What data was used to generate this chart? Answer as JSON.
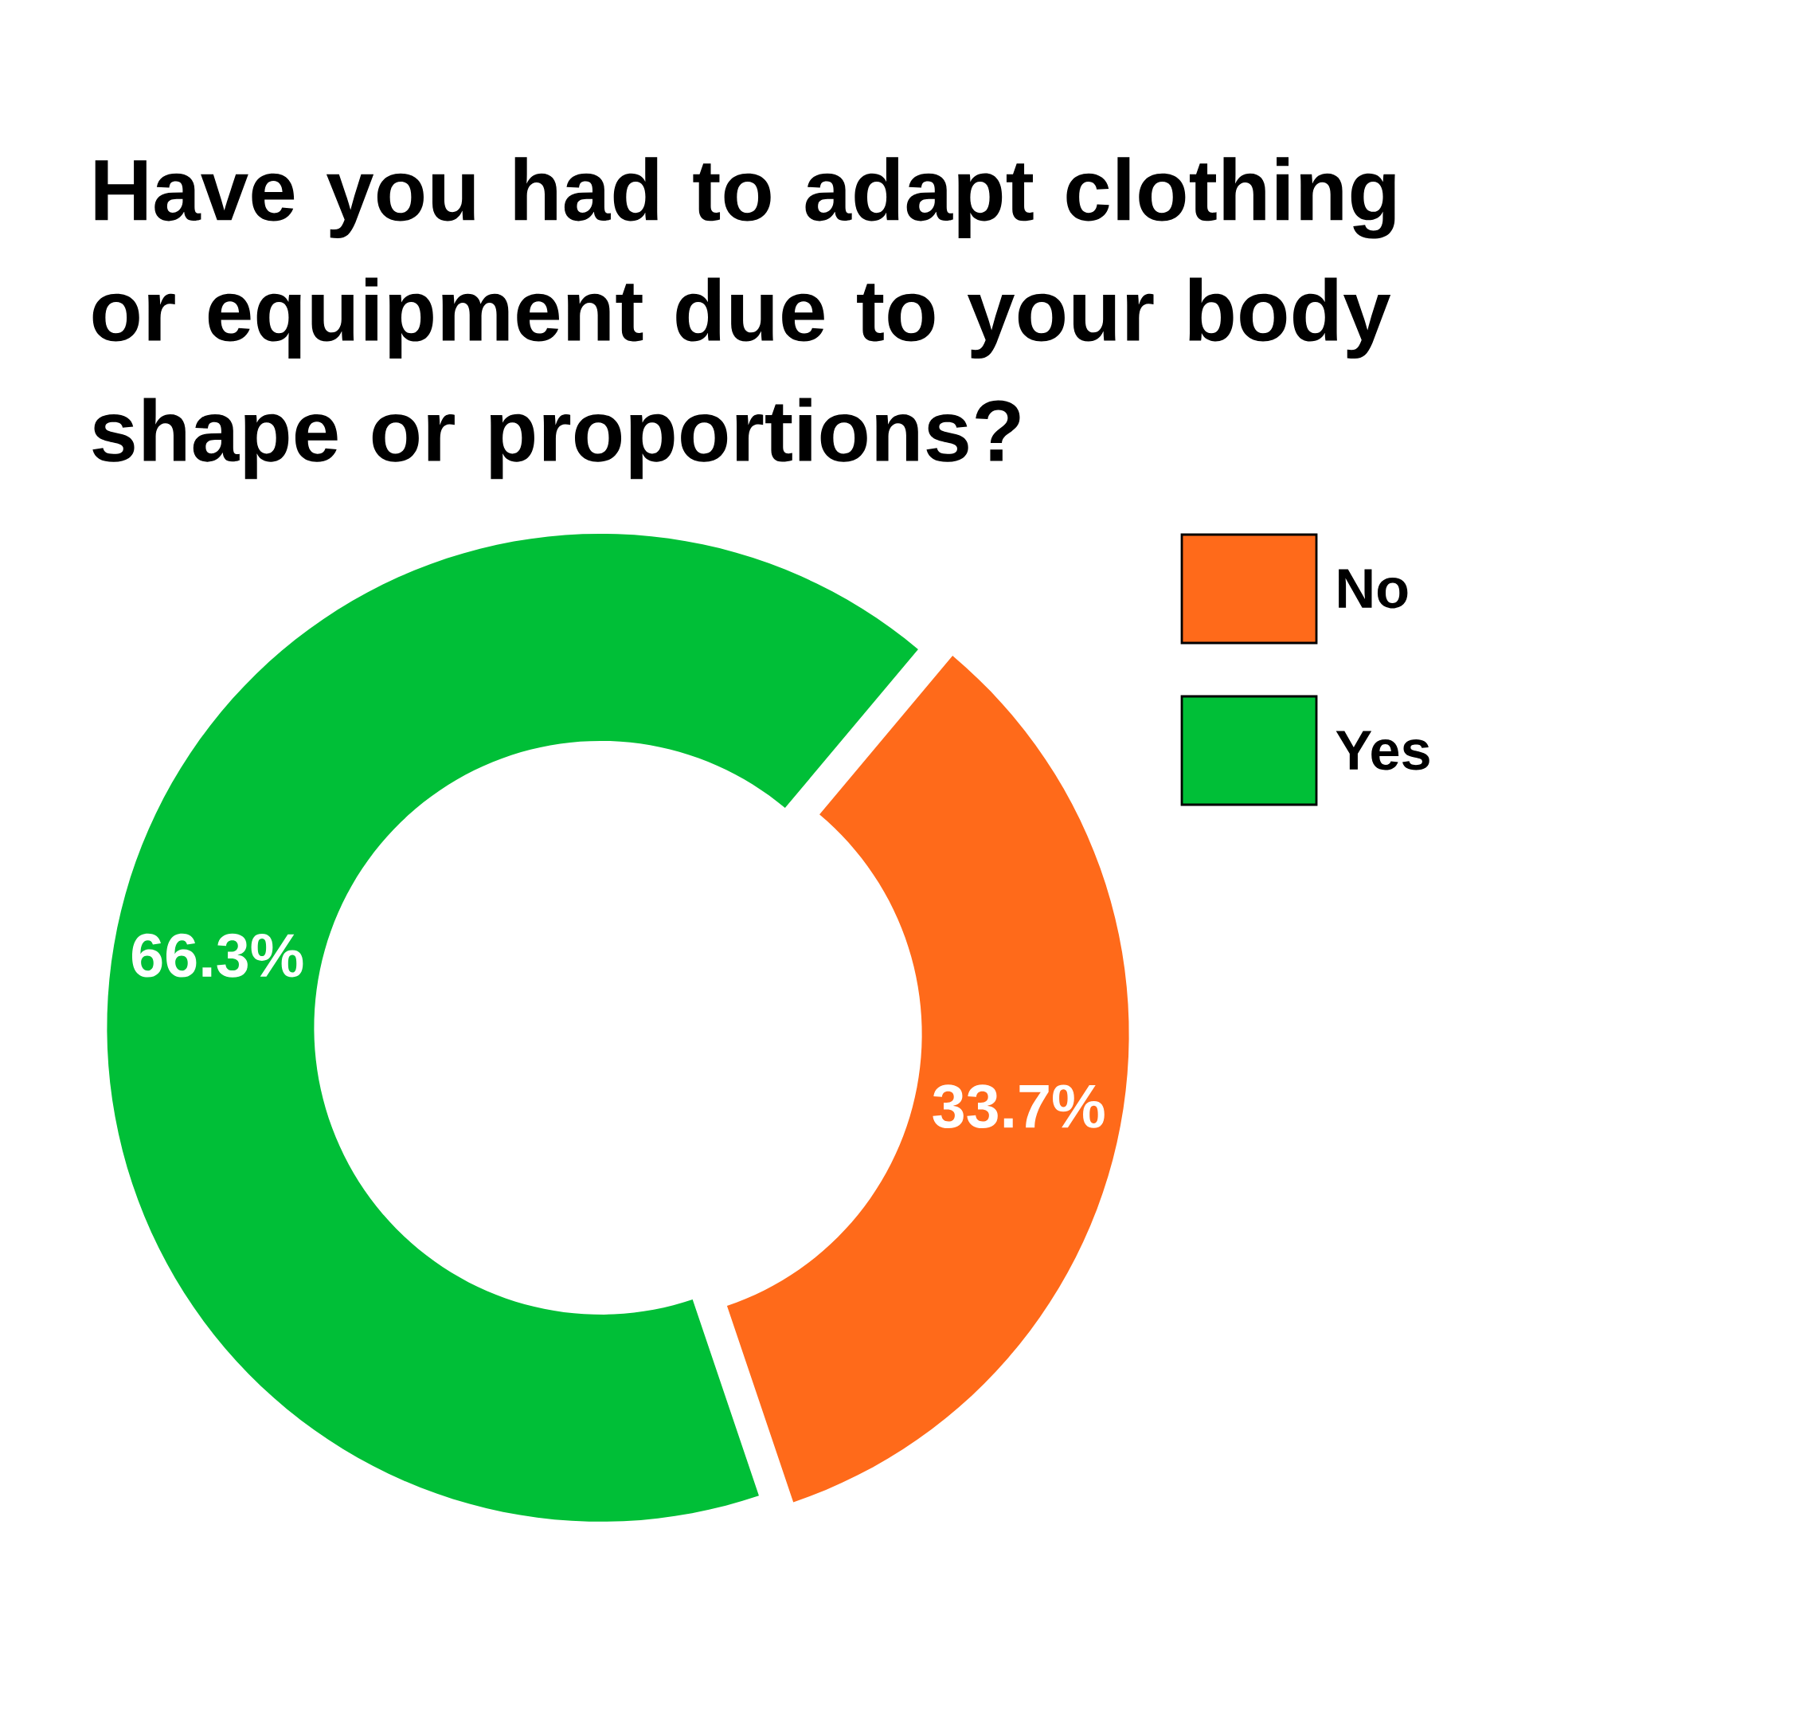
{
  "chart_data": {
    "type": "donut",
    "title": "Have you had to adapt clothing or equipment due to your body shape or proportions?",
    "categories": [
      "No",
      "Yes"
    ],
    "values": [
      33.7,
      66.3
    ],
    "value_labels": [
      "33.7%",
      "66.3%"
    ],
    "colors": [
      "#ff6a1a",
      "#00bf37"
    ],
    "legend": "top right"
  }
}
